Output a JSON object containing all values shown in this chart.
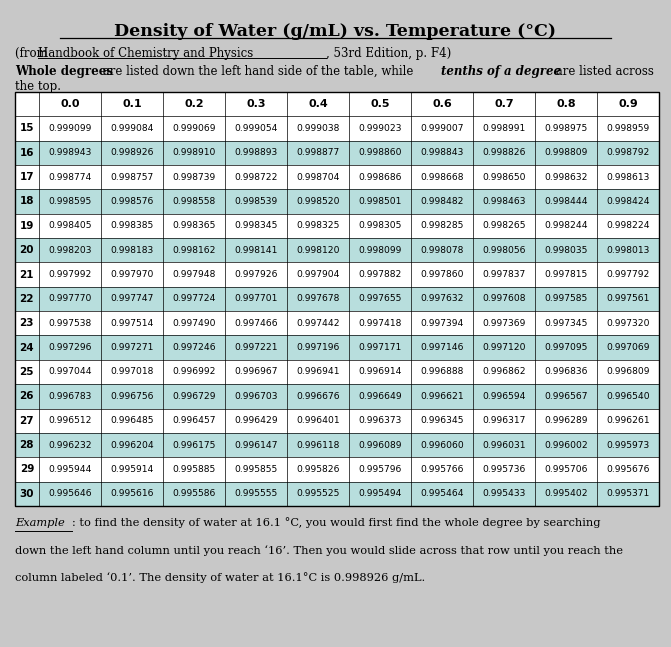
{
  "title": "Density of Water (g/mL) vs. Temperature (°C)",
  "subtitle_prefix": "(from ",
  "subtitle_book": "Handbook of Chemistry and Physics",
  "subtitle_suffix": ", 53rd Edition, p. F4)",
  "desc_bold1": "Whole degrees",
  "desc_normal1": " are listed down the left hand side of the table, while ",
  "desc_italic": "tenths of a degree",
  "desc_normal2": " are listed across",
  "desc_line2": "the top.",
  "col_headers": [
    "0.0",
    "0.1",
    "0.2",
    "0.3",
    "0.4",
    "0.5",
    "0.6",
    "0.7",
    "0.8",
    "0.9"
  ],
  "rows": [
    {
      "temp": "15",
      "values": [
        "0.999099",
        "0.999084",
        "0.999069",
        "0.999054",
        "0.999038",
        "0.999023",
        "0.999007",
        "0.998991",
        "0.998975",
        "0.998959"
      ]
    },
    {
      "temp": "16",
      "values": [
        "0.998943",
        "0.998926",
        "0.998910",
        "0.998893",
        "0.998877",
        "0.998860",
        "0.998843",
        "0.998826",
        "0.998809",
        "0.998792"
      ]
    },
    {
      "temp": "17",
      "values": [
        "0.998774",
        "0.998757",
        "0.998739",
        "0.998722",
        "0.998704",
        "0.998686",
        "0.998668",
        "0.998650",
        "0.998632",
        "0.998613"
      ]
    },
    {
      "temp": "18",
      "values": [
        "0.998595",
        "0.998576",
        "0.998558",
        "0.998539",
        "0.998520",
        "0.998501",
        "0.998482",
        "0.998463",
        "0.998444",
        "0.998424"
      ]
    },
    {
      "temp": "19",
      "values": [
        "0.998405",
        "0.998385",
        "0.998365",
        "0.998345",
        "0.998325",
        "0.998305",
        "0.998285",
        "0.998265",
        "0.998244",
        "0.998224"
      ]
    },
    {
      "temp": "20",
      "values": [
        "0.998203",
        "0.998183",
        "0.998162",
        "0.998141",
        "0.998120",
        "0.998099",
        "0.998078",
        "0.998056",
        "0.998035",
        "0.998013"
      ]
    },
    {
      "temp": "21",
      "values": [
        "0.997992",
        "0.997970",
        "0.997948",
        "0.997926",
        "0.997904",
        "0.997882",
        "0.997860",
        "0.997837",
        "0.997815",
        "0.997792"
      ]
    },
    {
      "temp": "22",
      "values": [
        "0.997770",
        "0.997747",
        "0.997724",
        "0.997701",
        "0.997678",
        "0.997655",
        "0.997632",
        "0.997608",
        "0.997585",
        "0.997561"
      ]
    },
    {
      "temp": "23",
      "values": [
        "0.997538",
        "0.997514",
        "0.997490",
        "0.997466",
        "0.997442",
        "0.997418",
        "0.997394",
        "0.997369",
        "0.997345",
        "0.997320"
      ]
    },
    {
      "temp": "24",
      "values": [
        "0.997296",
        "0.997271",
        "0.997246",
        "0.997221",
        "0.997196",
        "0.997171",
        "0.997146",
        "0.997120",
        "0.997095",
        "0.997069"
      ]
    },
    {
      "temp": "25",
      "values": [
        "0.997044",
        "0.997018",
        "0.996992",
        "0.996967",
        "0.996941",
        "0.996914",
        "0.996888",
        "0.996862",
        "0.996836",
        "0.996809"
      ]
    },
    {
      "temp": "26",
      "values": [
        "0.996783",
        "0.996756",
        "0.996729",
        "0.996703",
        "0.996676",
        "0.996649",
        "0.996621",
        "0.996594",
        "0.996567",
        "0.996540"
      ]
    },
    {
      "temp": "27",
      "values": [
        "0.996512",
        "0.996485",
        "0.996457",
        "0.996429",
        "0.996401",
        "0.996373",
        "0.996345",
        "0.996317",
        "0.996289",
        "0.996261"
      ]
    },
    {
      "temp": "28",
      "values": [
        "0.996232",
        "0.996204",
        "0.996175",
        "0.996147",
        "0.996118",
        "0.996089",
        "0.996060",
        "0.996031",
        "0.996002",
        "0.995973"
      ]
    },
    {
      "temp": "29",
      "values": [
        "0.995944",
        "0.995914",
        "0.995885",
        "0.995855",
        "0.995826",
        "0.995796",
        "0.995766",
        "0.995736",
        "0.995706",
        "0.995676"
      ]
    },
    {
      "temp": "30",
      "values": [
        "0.995646",
        "0.995616",
        "0.995586",
        "0.995555",
        "0.995525",
        "0.995494",
        "0.995464",
        "0.995433",
        "0.995402",
        "0.995371"
      ]
    }
  ],
  "highlight_rows": [
    1,
    3,
    5,
    7,
    9,
    11,
    13,
    15
  ],
  "highlight_color": "#b8dedd",
  "bg_color": "#c8c8c8",
  "white": "#ffffff",
  "example_word": "Example",
  "example_rest_line1": ": to find the density of water at 16.1 °C, you would first find the whole degree by searching",
  "example_line2": "down the left hand column until you reach ‘16’. Then you would slide across that row until you reach the",
  "example_line3": "column labeled ‘0.1’. The density of water at 16.1°C is 0.998926 g/mL."
}
